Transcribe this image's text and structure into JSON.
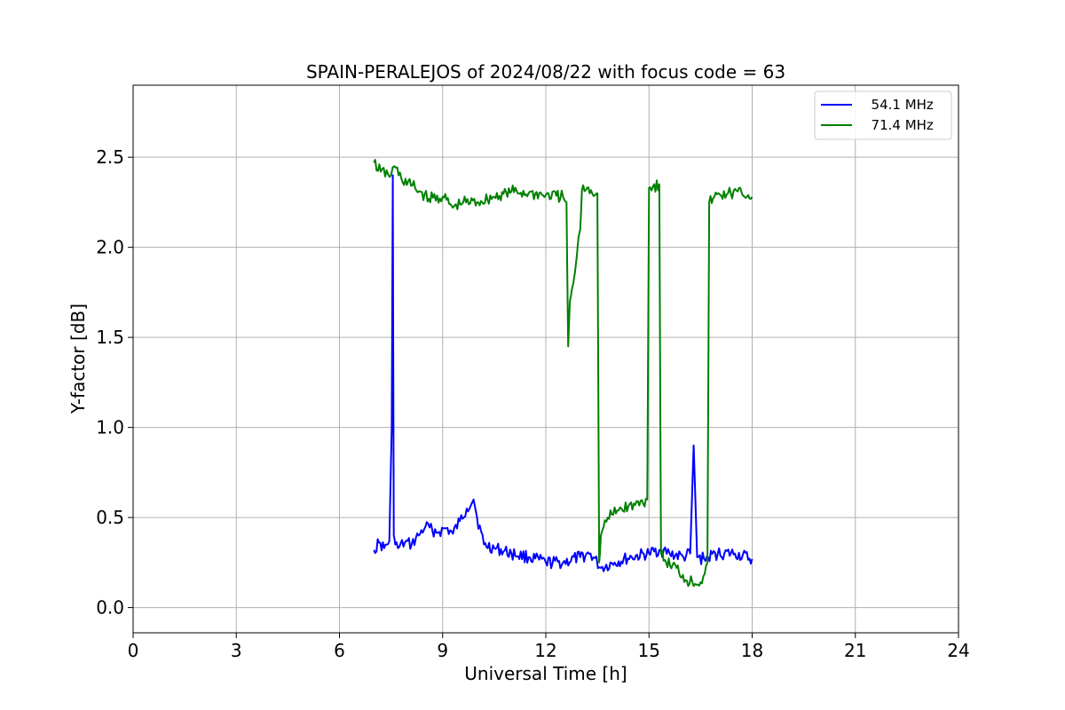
{
  "chart_data": {
    "type": "line",
    "title": "SPAIN-PERALEJOS of 2024/08/22 with focus code = 63",
    "xlabel": "Universal Time [h]",
    "ylabel": "Y-factor [dB]",
    "xlim": [
      0,
      24
    ],
    "ylim": [
      -0.14,
      2.9
    ],
    "xticks": [
      0,
      3,
      6,
      9,
      12,
      15,
      18,
      21,
      24
    ],
    "xtick_labels": [
      "0",
      "3",
      "6",
      "9",
      "12",
      "15",
      "18",
      "21",
      "24"
    ],
    "yticks": [
      0.0,
      0.5,
      1.0,
      1.5,
      2.0,
      2.5
    ],
    "ytick_labels": [
      "0.0",
      "0.5",
      "1.0",
      "1.5",
      "2.0",
      "2.5"
    ],
    "grid": true,
    "legend_position": "top-right",
    "series": [
      {
        "name": "  54.1 MHz",
        "color": "#0000ff",
        "x": [
          7.0,
          7.15,
          7.3,
          7.45,
          7.52,
          7.55,
          7.58,
          7.62,
          7.7,
          7.9,
          8.1,
          8.3,
          8.5,
          8.7,
          8.9,
          9.1,
          9.3,
          9.5,
          9.7,
          9.9,
          10.0,
          10.2,
          10.5,
          11.0,
          11.5,
          12.0,
          12.5,
          13.0,
          13.3,
          13.6,
          14.0,
          14.5,
          15.0,
          15.3,
          15.6,
          16.0,
          16.2,
          16.3,
          16.4,
          16.6,
          17.0,
          17.5,
          18.0
        ],
        "y": [
          0.32,
          0.36,
          0.33,
          0.37,
          1.0,
          2.4,
          0.4,
          0.35,
          0.33,
          0.36,
          0.35,
          0.4,
          0.45,
          0.43,
          0.42,
          0.44,
          0.41,
          0.48,
          0.55,
          0.6,
          0.5,
          0.35,
          0.33,
          0.3,
          0.28,
          0.25,
          0.25,
          0.28,
          0.3,
          0.22,
          0.25,
          0.28,
          0.3,
          0.32,
          0.3,
          0.28,
          0.3,
          0.9,
          0.28,
          0.27,
          0.3,
          0.3,
          0.27
        ]
      },
      {
        "name": "  71.4 MHz",
        "color": "#008000",
        "x": [
          7.0,
          7.2,
          7.5,
          7.6,
          7.8,
          8.2,
          8.6,
          9.0,
          9.3,
          9.6,
          10.0,
          10.5,
          11.0,
          11.5,
          12.0,
          12.5,
          12.6,
          12.65,
          12.7,
          12.8,
          12.9,
          13.0,
          13.05,
          13.2,
          13.5,
          13.55,
          13.6,
          13.8,
          14.2,
          14.6,
          14.95,
          15.0,
          15.3,
          15.35,
          15.5,
          15.8,
          16.1,
          16.5,
          16.7,
          16.75,
          16.9,
          17.3,
          17.7,
          18.0
        ],
        "y": [
          2.47,
          2.42,
          2.4,
          2.45,
          2.38,
          2.33,
          2.27,
          2.28,
          2.22,
          2.25,
          2.25,
          2.28,
          2.31,
          2.3,
          2.29,
          2.28,
          2.25,
          1.45,
          1.7,
          1.8,
          1.95,
          2.1,
          2.32,
          2.33,
          2.3,
          0.25,
          0.4,
          0.5,
          0.55,
          0.57,
          0.6,
          2.33,
          2.35,
          0.3,
          0.25,
          0.22,
          0.15,
          0.14,
          0.25,
          2.25,
          2.28,
          2.3,
          2.3,
          2.28
        ]
      }
    ]
  }
}
